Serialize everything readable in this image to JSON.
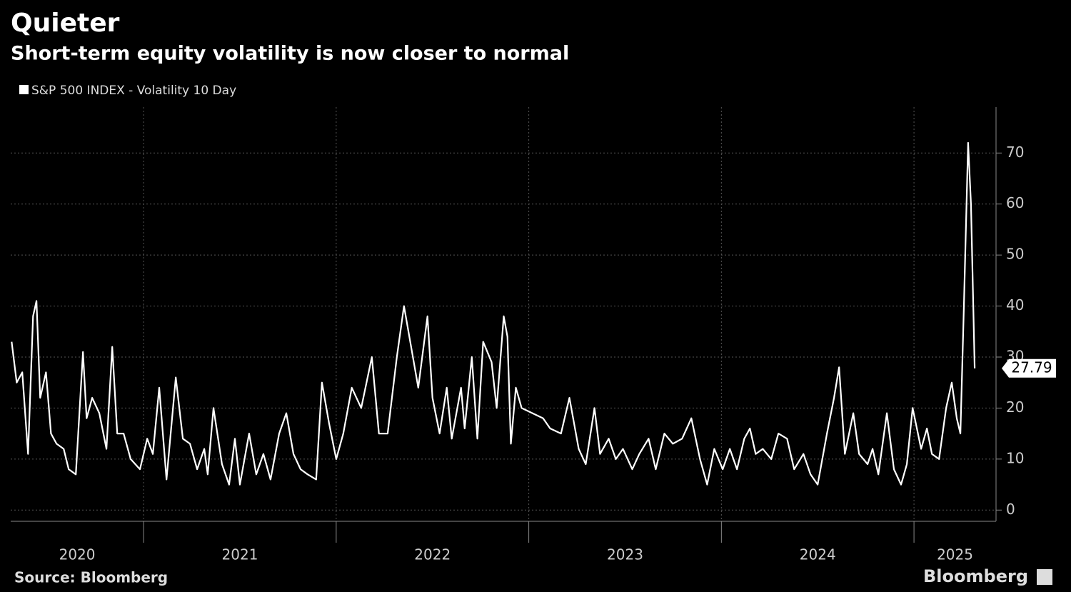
{
  "chart_data": {
    "type": "line",
    "title": "Quieter",
    "subtitle": "Short-term equity volatility is now closer to normal",
    "source": "Source: Bloomberg",
    "brand": "Bloomberg",
    "xlim": [
      2020.31,
      2025.426
    ],
    "xticks": [
      2020,
      2021,
      2022,
      2023,
      2024,
      2025
    ],
    "ylim": [
      -2.2,
      79
    ],
    "yticks": [
      0,
      10,
      20,
      30,
      40,
      50,
      60,
      70
    ],
    "grid": true,
    "series": [
      {
        "name": "S&P 500 INDEX - Volatility 10 Day",
        "color": "#ffffff",
        "x": [
          2020.315,
          2020.341,
          2020.37,
          2020.4,
          2020.426,
          2020.444,
          2020.463,
          2020.493,
          2020.519,
          2020.548,
          2020.585,
          2020.611,
          2020.648,
          2020.685,
          2020.704,
          2020.733,
          2020.77,
          2020.807,
          2020.837,
          2020.863,
          2020.896,
          2020.933,
          2020.981,
          2021.019,
          2021.048,
          2021.081,
          2021.119,
          2021.167,
          2021.204,
          2021.241,
          2021.278,
          2021.315,
          2021.333,
          2021.363,
          2021.407,
          2021.444,
          2021.474,
          2021.5,
          2021.548,
          2021.585,
          2021.622,
          2021.659,
          2021.704,
          2021.741,
          2021.778,
          2021.815,
          2021.852,
          2021.896,
          2021.926,
          2021.963,
          2022.0,
          2022.037,
          2022.081,
          2022.13,
          2022.185,
          2022.222,
          2022.267,
          2022.315,
          2022.352,
          2022.389,
          2022.426,
          2022.474,
          2022.5,
          2022.537,
          2022.574,
          2022.6,
          2022.648,
          2022.667,
          2022.704,
          2022.733,
          2022.763,
          2022.807,
          2022.833,
          2022.87,
          2022.889,
          2022.907,
          2022.933,
          2022.963,
          2023.019,
          2023.074,
          2023.111,
          2023.167,
          2023.211,
          2023.259,
          2023.296,
          2023.341,
          2023.37,
          2023.415,
          2023.452,
          2023.489,
          2023.537,
          2023.574,
          2023.622,
          2023.659,
          2023.704,
          2023.748,
          2023.796,
          2023.844,
          2023.889,
          2023.926,
          2023.963,
          2024.007,
          2024.044,
          2024.081,
          2024.119,
          2024.148,
          2024.178,
          2024.215,
          2024.259,
          2024.296,
          2024.341,
          2024.378,
          2024.426,
          2024.463,
          2024.5,
          2024.548,
          2024.585,
          2024.611,
          2024.641,
          2024.685,
          2024.715,
          2024.759,
          2024.785,
          2024.815,
          2024.859,
          2024.896,
          2024.933,
          2024.963,
          2024.993,
          2025.037,
          2025.067,
          2025.093,
          2025.13,
          2025.167,
          2025.196,
          2025.222,
          2025.241,
          2025.259,
          2025.281,
          2025.296,
          2025.315
        ],
        "values": [
          33,
          25,
          27,
          11,
          38,
          41,
          22,
          27,
          15,
          13,
          12,
          8,
          7,
          31,
          18,
          22,
          19,
          12,
          32,
          15,
          15,
          10,
          8,
          14,
          11,
          24,
          6,
          26,
          14,
          13,
          8,
          12,
          7,
          20,
          9,
          5,
          14,
          5,
          15,
          7,
          11,
          6,
          15,
          19,
          11,
          8,
          7,
          6,
          25,
          17,
          10,
          15,
          24,
          20,
          30,
          15,
          15,
          30,
          40,
          32,
          24,
          38,
          22,
          15,
          24,
          14,
          24,
          16,
          30,
          14,
          33,
          29,
          20,
          38,
          34,
          13,
          24,
          20,
          19,
          18,
          16,
          15,
          22,
          12,
          9,
          20,
          11,
          14,
          10,
          12,
          8,
          11,
          14,
          8,
          15,
          13,
          14,
          18,
          10,
          5,
          12,
          8,
          12,
          8,
          14,
          16,
          11,
          12,
          10,
          15,
          14,
          8,
          11,
          7,
          5,
          15,
          22,
          28,
          11,
          19,
          11,
          9,
          12,
          7,
          19,
          8,
          5,
          9,
          20,
          12,
          16,
          11,
          10,
          20,
          25,
          18,
          15,
          40,
          72,
          60,
          27.79
        ]
      }
    ]
  }
}
